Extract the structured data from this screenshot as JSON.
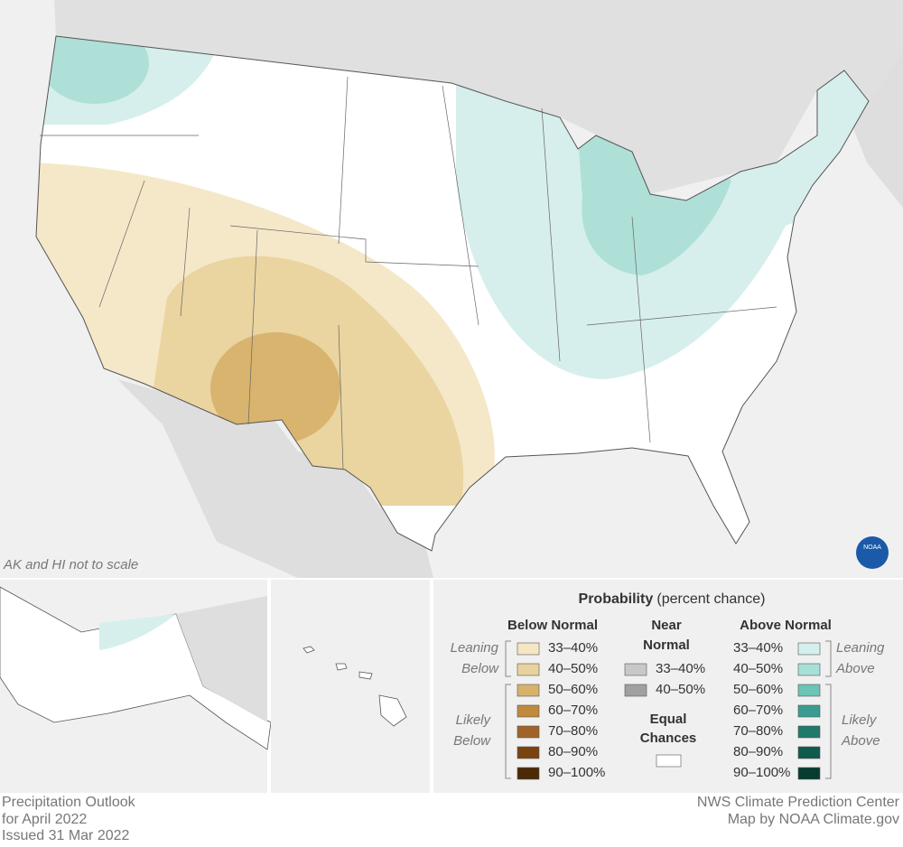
{
  "note": "AK and HI not to scale",
  "logo": "NOAA",
  "legend": {
    "title": "Probability",
    "subtitle": "(percent chance)",
    "below": {
      "heading": [
        "Below Normal"
      ],
      "items": [
        {
          "label": "33–40%",
          "color": "#f5e6c4"
        },
        {
          "label": "40–50%",
          "color": "#e8d29e"
        },
        {
          "label": "50–60%",
          "color": "#d6b26a"
        },
        {
          "label": "60–70%",
          "color": "#c08a3c"
        },
        {
          "label": "70–80%",
          "color": "#a0642a"
        },
        {
          "label": "80–90%",
          "color": "#7a4410"
        },
        {
          "label": "90–100%",
          "color": "#4c2a08"
        }
      ]
    },
    "near": {
      "heading": [
        "Near",
        "Normal"
      ],
      "items": [
        {
          "label": "33–40%",
          "color": "#c8c8c8"
        },
        {
          "label": "40–50%",
          "color": "#a0a0a0"
        }
      ]
    },
    "equal": {
      "heading": [
        "Equal",
        "Chances"
      ],
      "color": "#ffffff"
    },
    "above": {
      "heading": [
        "Above Normal"
      ],
      "items": [
        {
          "label": "33–40%",
          "color": "#d4efec"
        },
        {
          "label": "40–50%",
          "color": "#a8e0d8"
        },
        {
          "label": "50–60%",
          "color": "#6cc4b6"
        },
        {
          "label": "60–70%",
          "color": "#3a9c90"
        },
        {
          "label": "70–80%",
          "color": "#1f7a6c"
        },
        {
          "label": "80–90%",
          "color": "#0e5a4c"
        },
        {
          "label": "90–100%",
          "color": "#063c30"
        }
      ]
    },
    "side": {
      "leaning_below": [
        "Leaning",
        "Below"
      ],
      "likely_below": [
        "Likely",
        "Below"
      ],
      "leaning_above": [
        "Leaning",
        "Above"
      ],
      "likely_above": [
        "Likely",
        "Above"
      ]
    }
  },
  "footer": {
    "left": [
      "Precipitation Outlook",
      "for April 2022",
      "Issued 31 Mar 2022"
    ],
    "right": [
      "NWS Climate Prediction Center",
      "Map by NOAA Climate.gov"
    ]
  }
}
